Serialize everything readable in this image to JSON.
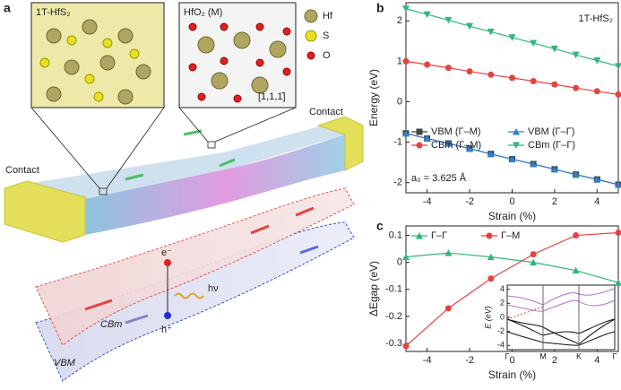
{
  "panel_labels": [
    "a",
    "b",
    "c"
  ],
  "illustration": {
    "inset_left": "1T-HfS₂",
    "inset_right": "HfO₂ (M)",
    "direction": "[1,1,1̄]",
    "atoms": [
      "Hf",
      "S",
      "O"
    ],
    "contacts": [
      "Contact",
      "Contact"
    ],
    "electron": "e⁻",
    "photon": "hν",
    "hole": "h⁺",
    "bands": [
      "CBm",
      "VBM"
    ]
  },
  "chart_data": [
    {
      "type": "line",
      "xlabel": "Strain (%)",
      "ylabel": "Energy (eV)",
      "annotations": [
        "1T-HfS₂",
        "a₀ = 3.625 Å"
      ],
      "x": [
        -5,
        -4,
        -3,
        -2,
        -1,
        0,
        1,
        2,
        3,
        4,
        5
      ],
      "xlim": [
        -5,
        5
      ],
      "xticks": [
        -4,
        -2,
        0,
        2,
        4
      ],
      "ylim": [
        -2.25,
        2.45
      ],
      "yticks": [
        -2,
        -1,
        0,
        1,
        2
      ],
      "legend": "lower left",
      "series": [
        {
          "name": "VBM (Γ–M)",
          "color": "#444444",
          "marker": "square",
          "values": [
            -0.78,
            -0.91,
            -1.03,
            -1.16,
            -1.29,
            -1.42,
            -1.54,
            -1.67,
            -1.8,
            -1.92,
            -2.05
          ]
        },
        {
          "name": "VBM (Γ–Γ)",
          "color": "#2f7fd1",
          "marker": "triangle",
          "values": [
            -0.78,
            -0.91,
            -1.03,
            -1.16,
            -1.29,
            -1.42,
            -1.54,
            -1.67,
            -1.8,
            -1.92,
            -2.05
          ]
        },
        {
          "name": "CBm (Γ–M)",
          "color": "#e8423f",
          "marker": "circle",
          "values": [
            1.0,
            0.92,
            0.84,
            0.75,
            0.67,
            0.59,
            0.51,
            0.43,
            0.34,
            0.26,
            0.18
          ]
        },
        {
          "name": "CBm (Γ–Γ)",
          "color": "#2fb87a",
          "marker": "triangle-down",
          "values": [
            2.3,
            2.16,
            2.02,
            1.87,
            1.73,
            1.59,
            1.45,
            1.31,
            1.16,
            1.02,
            0.88
          ]
        }
      ]
    },
    {
      "type": "line",
      "xlabel": "Strain (%)",
      "ylabel": "ΔEgap (eV)",
      "x": [
        -5,
        -3,
        -1,
        1,
        3,
        5
      ],
      "xlim": [
        -5,
        5
      ],
      "xticks": [
        -4,
        -2,
        0,
        2,
        4
      ],
      "ylim": [
        -0.33,
        0.135
      ],
      "yticks": [
        -0.3,
        -0.2,
        -0.1,
        0,
        0.1
      ],
      "legend": "upper left",
      "series": [
        {
          "name": "Γ–Γ",
          "color": "#2fb87a",
          "marker": "triangle",
          "values": [
            0.02,
            0.035,
            0.02,
            0.0,
            -0.03,
            -0.075
          ]
        },
        {
          "name": "Γ–M",
          "color": "#e8423f",
          "marker": "circle",
          "values": [
            -0.31,
            -0.17,
            -0.06,
            0.03,
            0.1,
            0.11
          ]
        }
      ],
      "inset": {
        "ylabel": "E (eV)",
        "ylim": [
          -4.6,
          4.6
        ],
        "yticks": [
          -4,
          -2,
          0,
          2,
          4
        ],
        "categories": [
          "Γ",
          "M",
          "K",
          "Γ"
        ]
      }
    }
  ]
}
